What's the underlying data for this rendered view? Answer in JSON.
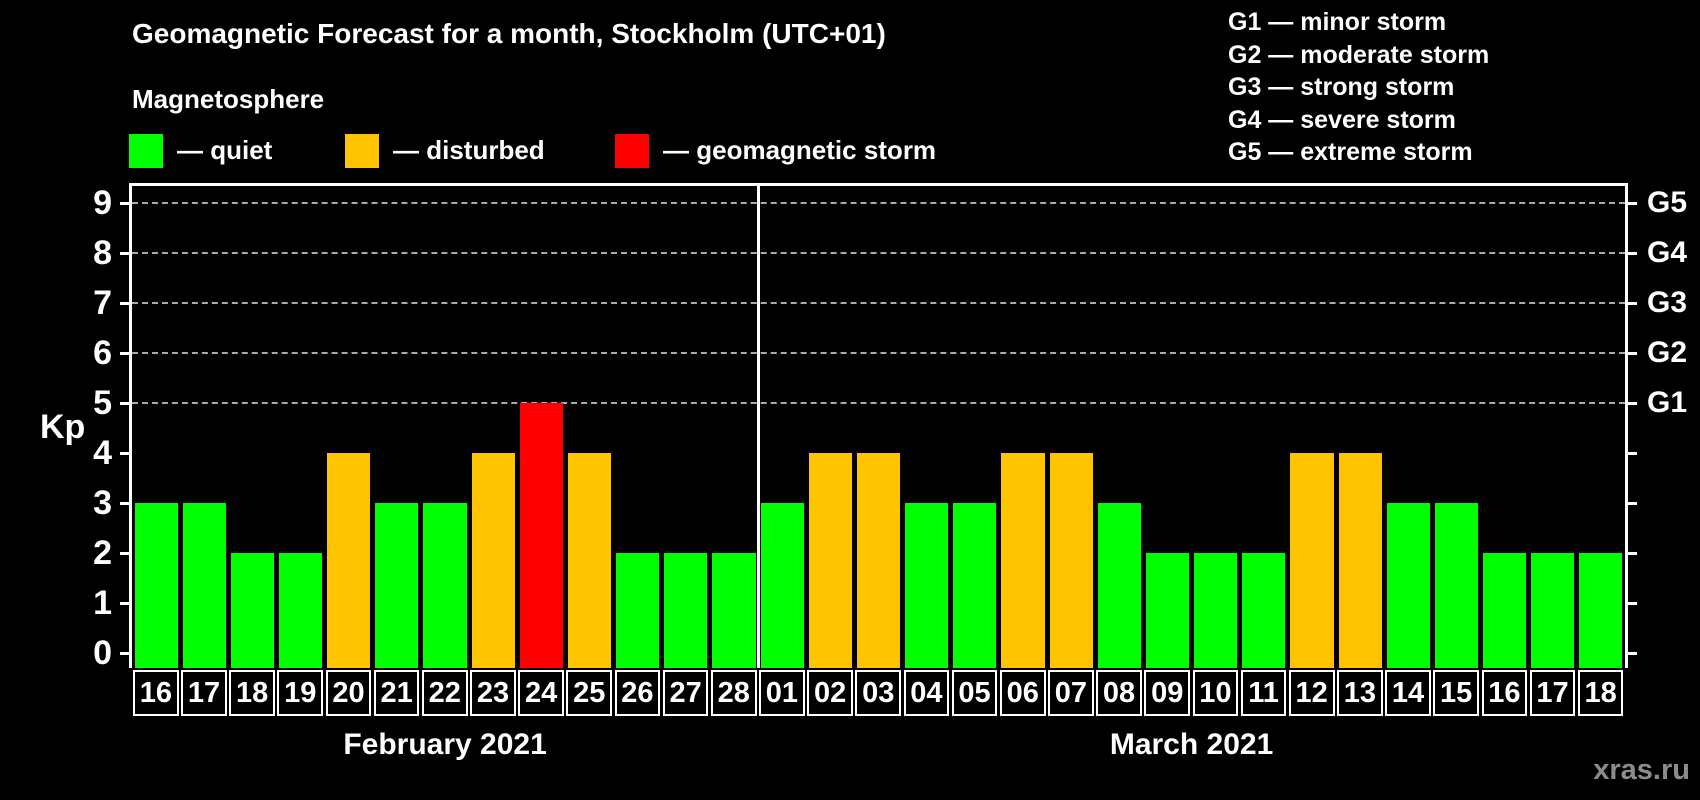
{
  "title": "Geomagnetic Forecast for a month, Stockholm (UTC+01)",
  "legend": {
    "heading": "Magnetosphere",
    "items": [
      {
        "name": "quiet",
        "label": "— quiet",
        "color": "#00ff00"
      },
      {
        "name": "disturbed",
        "label": "— disturbed",
        "color": "#ffc400"
      },
      {
        "name": "storm",
        "label": "— geomagnetic storm",
        "color": "#ff0000"
      }
    ]
  },
  "g_legend": {
    "items": [
      {
        "label": "G1 — minor storm"
      },
      {
        "label": "G2 — moderate storm"
      },
      {
        "label": "G3 — strong storm"
      },
      {
        "label": "G4 — severe storm"
      },
      {
        "label": "G5 — extreme storm"
      }
    ]
  },
  "axis": {
    "y_label": "Kp",
    "y_ticks": [
      0,
      1,
      2,
      3,
      4,
      5,
      6,
      7,
      8,
      9
    ],
    "g_axis_labels": [
      {
        "kp": 5,
        "label": "G1"
      },
      {
        "kp": 6,
        "label": "G2"
      },
      {
        "kp": 7,
        "label": "G3"
      },
      {
        "kp": 8,
        "label": "G4"
      },
      {
        "kp": 9,
        "label": "G5"
      }
    ]
  },
  "watermark": "xras.ru",
  "chart_data": {
    "type": "bar",
    "title": "Geomagnetic Forecast for a month, Stockholm (UTC+01)",
    "ylabel": "Kp",
    "ylim": [
      0,
      9.4
    ],
    "grid": "dashed horizontal lines at Kp 5-9",
    "grid_dashed_at": [
      5,
      6,
      7,
      8,
      9
    ],
    "legend_position": "top",
    "colors": {
      "quiet": "#00ff00",
      "disturbed": "#ffc400",
      "storm": "#ff0000"
    },
    "color_rules": {
      "quiet_max": 3,
      "disturbed_max": 4
    },
    "groups": [
      {
        "month": "February 2021",
        "days": [
          "16",
          "17",
          "18",
          "19",
          "20",
          "21",
          "22",
          "23",
          "24",
          "25",
          "26",
          "27",
          "28"
        ],
        "values": [
          3,
          3,
          2,
          2,
          4,
          3,
          3,
          4,
          5,
          4,
          2,
          2,
          2
        ]
      },
      {
        "month": "March 2021",
        "days": [
          "01",
          "02",
          "03",
          "04",
          "05",
          "06",
          "07",
          "08",
          "09",
          "10",
          "11",
          "12",
          "13",
          "14",
          "15",
          "16",
          "17",
          "18"
        ],
        "values": [
          3,
          4,
          4,
          3,
          3,
          4,
          4,
          3,
          2,
          2,
          2,
          4,
          4,
          3,
          3,
          2,
          2,
          2
        ]
      }
    ]
  }
}
